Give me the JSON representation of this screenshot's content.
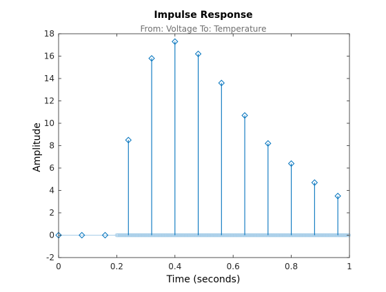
{
  "chart_data": {
    "type": "stem",
    "title": "Impulse Response",
    "subtitle": "From: Voltage  To: Temperature",
    "xlabel": "Time (seconds)",
    "ylabel": "Amplitude",
    "xlim": [
      0,
      1
    ],
    "ylim": [
      -2,
      18
    ],
    "xticks": [
      0,
      0.2,
      0.4,
      0.6,
      0.8,
      1
    ],
    "xtick_labels": [
      "0",
      "0.2",
      "0.4",
      "0.6",
      "0.8",
      "1"
    ],
    "yticks": [
      -2,
      0,
      2,
      4,
      6,
      8,
      10,
      12,
      14,
      16,
      18
    ],
    "ytick_labels": [
      "-2",
      "0",
      "2",
      "4",
      "6",
      "8",
      "10",
      "12",
      "14",
      "16",
      "18"
    ],
    "grid": false,
    "series": [
      {
        "x": [
          0,
          0.08,
          0.16,
          0.24,
          0.32,
          0.4,
          0.48,
          0.56,
          0.64,
          0.72,
          0.8,
          0.88,
          0.96
        ],
        "y": [
          0,
          0,
          0,
          8.5,
          15.8,
          17.3,
          16.2,
          13.6,
          10.7,
          8.2,
          6.4,
          4.7,
          3.5
        ],
        "color": "#0072bd",
        "marker": "diamond"
      }
    ],
    "dense_marker_color": "#a6cde8",
    "dense_marker_range": [
      0.2,
      1
    ]
  }
}
